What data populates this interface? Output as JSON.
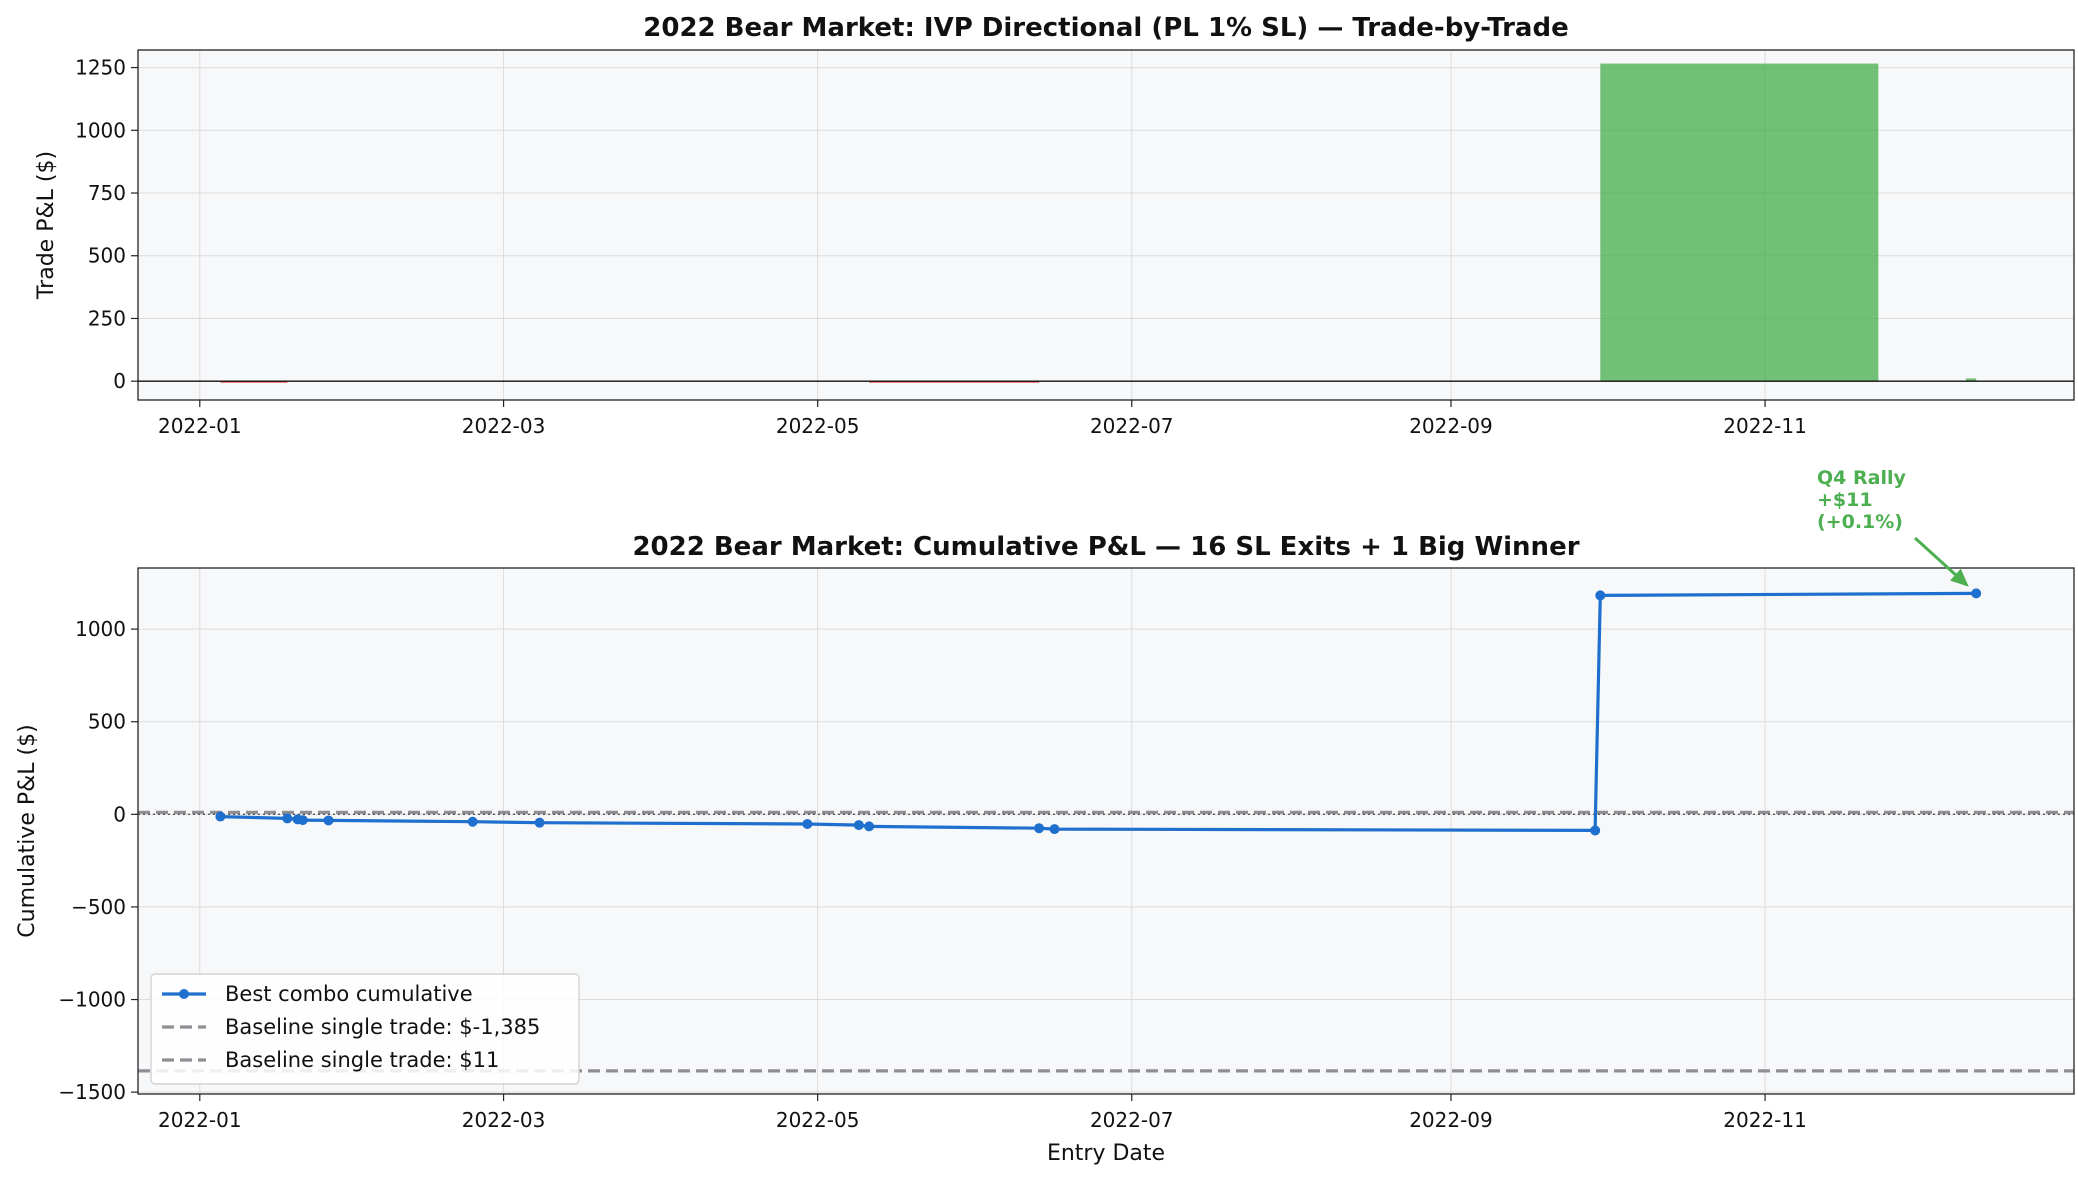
{
  "chart_data": [
    {
      "type": "bar",
      "title": "2022 Bear Market: IVP Directional (PL 1% SL) — Trade-by-Trade",
      "xlabel": "",
      "ylabel": "Trade P&L ($)",
      "x_axis_type": "date",
      "xlim": [
        "2021-12-20",
        "2022-12-31"
      ],
      "ylim": [
        -75,
        1320
      ],
      "yticks": [
        0,
        250,
        500,
        750,
        1000,
        1250
      ],
      "xticks": [
        "2022-01",
        "2022-03",
        "2022-05",
        "2022-07",
        "2022-09",
        "2022-11"
      ],
      "grid": true,
      "zero_line": true,
      "positive_color": "#4caf50",
      "negative_color": "#e53935",
      "bars": [
        {
          "start": "2022-01-05",
          "end": "2022-01-18",
          "value": -5
        },
        {
          "start": "2022-05-11",
          "end": "2022-06-13",
          "value": -5
        },
        {
          "start": "2022-09-30",
          "end": "2022-11-23",
          "value": 1266
        },
        {
          "start": "2022-12-10",
          "end": "2022-12-12",
          "value": 11
        }
      ]
    },
    {
      "type": "line",
      "title": "2022 Bear Market: Cumulative P&L — 16 SL Exits + 1 Big Winner",
      "xlabel": "Entry Date",
      "ylabel": "Cumulative P&L ($)",
      "x_axis_type": "date",
      "xlim": [
        "2021-12-20",
        "2022-12-31"
      ],
      "ylim": [
        -1510,
        1330
      ],
      "yticks": [
        -1500,
        -1000,
        -500,
        0,
        500,
        1000
      ],
      "xticks": [
        "2022-01",
        "2022-03",
        "2022-05",
        "2022-07",
        "2022-09",
        "2022-11"
      ],
      "grid": true,
      "legend_position": "lower-left",
      "series": [
        {
          "name": "Best combo cumulative",
          "color": "#1f6fce",
          "x": [
            "2022-01-05",
            "2022-01-18",
            "2022-01-20",
            "2022-01-21",
            "2022-01-26",
            "2022-02-23",
            "2022-03-08",
            "2022-04-29",
            "2022-05-09",
            "2022-05-11",
            "2022-06-13",
            "2022-06-16",
            "2022-09-29",
            "2022-09-30",
            "2022-12-12"
          ],
          "y": [
            -12,
            -22,
            -27,
            -31,
            -33,
            -40,
            -45,
            -52,
            -58,
            -65,
            -75,
            -80,
            -87,
            1182,
            1193
          ]
        }
      ],
      "reference_lines": [
        {
          "name": "Baseline single trade: $-1,385",
          "y": -1385,
          "color": "#8e8e93",
          "style": "dashed"
        },
        {
          "name": "Baseline single trade: $11",
          "y": 11,
          "color": "#8e8e93",
          "style": "dashed"
        }
      ],
      "zero_line": true,
      "annotation": {
        "lines": [
          "Q4 Rally",
          "+$11",
          "(+0.1%)"
        ],
        "target_x": "2022-12-12",
        "target_y": 1193,
        "color": "#4caf50"
      }
    }
  ]
}
